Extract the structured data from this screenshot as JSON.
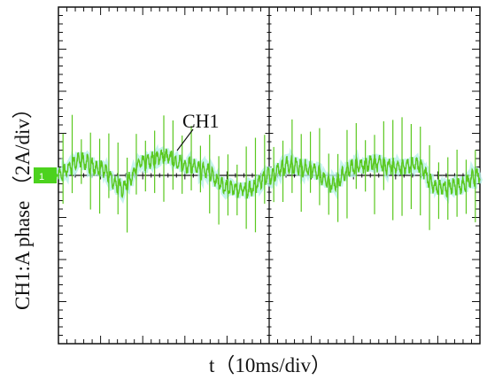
{
  "chart_data": {
    "type": "line",
    "ylabel": "CH1:A   phase   （2A/div）",
    "xlabel": "t（10ms/div）",
    "annotation": "CH1",
    "channel_marker": "1",
    "x_divisions": 10,
    "y_divisions": 8,
    "x_range_ms": [
      0,
      100
    ],
    "y_range_A": [
      -8,
      8
    ],
    "series": [
      {
        "name": "CH1",
        "color": "#5ac81e",
        "fundamental_period_ms": 50,
        "x_ms": [
          0,
          5,
          10,
          15,
          20,
          25,
          30,
          35,
          40,
          45,
          50,
          55,
          60,
          65,
          70,
          75,
          80,
          85,
          90,
          95,
          100
        ],
        "y_A": [
          0.0,
          0.7,
          0.3,
          -0.6,
          0.6,
          0.9,
          0.5,
          0.2,
          -0.6,
          -0.7,
          0.0,
          0.5,
          0.3,
          -0.4,
          0.4,
          0.6,
          0.4,
          0.5,
          -0.6,
          -0.5,
          0.0
        ]
      }
    ]
  }
}
